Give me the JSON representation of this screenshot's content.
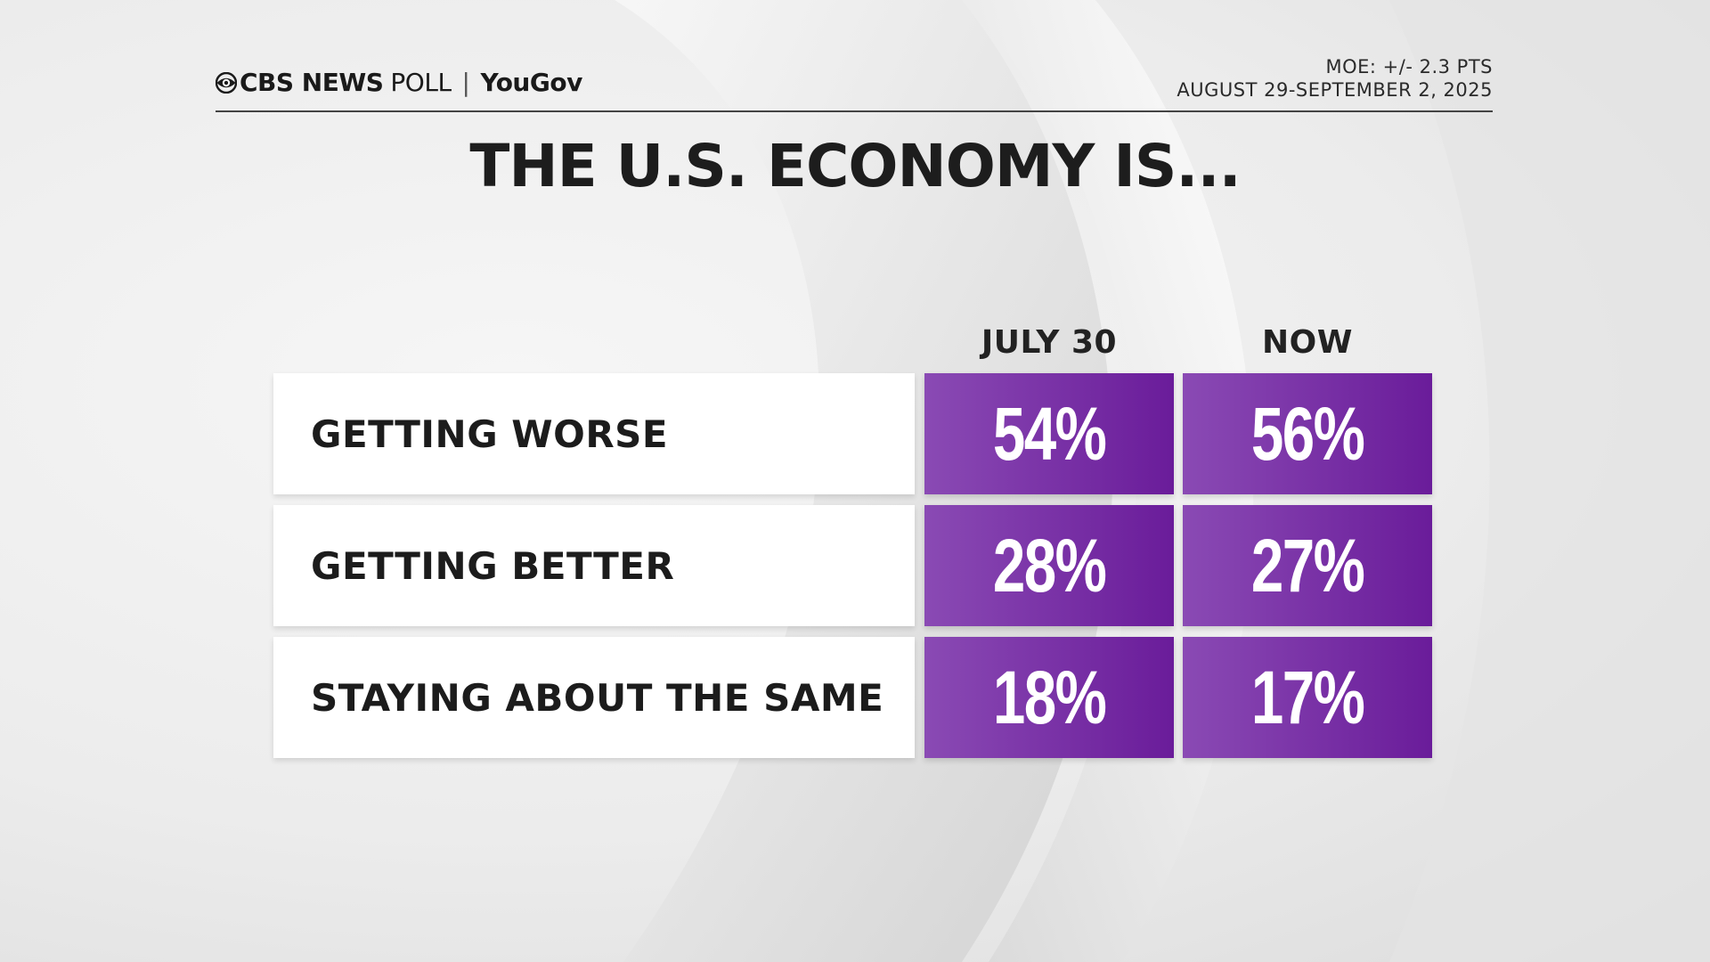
{
  "header": {
    "brand": {
      "network": "CBS NEWS",
      "poll_word": "POLL",
      "separator": "|",
      "partner": "YouGov"
    },
    "moe": "MOE: +/- 2.3 PTS",
    "dates": "AUGUST 29-SEPTEMBER 2, 2025"
  },
  "colors": {
    "bar_start": "#8a4ab4",
    "bar_end": "#6a1c9a",
    "text": "#1c1c1c",
    "label_bg": "#ffffff"
  },
  "chart_data": {
    "type": "table",
    "title": "THE U.S. ECONOMY IS...",
    "columns": [
      "JULY 30",
      "NOW"
    ],
    "categories": [
      "GETTING WORSE",
      "GETTING BETTER",
      "STAYING ABOUT THE SAME"
    ],
    "series": [
      {
        "name": "JULY 30",
        "values": [
          54,
          28,
          18
        ],
        "labels": [
          "54%",
          "28%",
          "18%"
        ]
      },
      {
        "name": "NOW",
        "values": [
          56,
          27,
          17
        ],
        "labels": [
          "56%",
          "27%",
          "17%"
        ]
      }
    ]
  }
}
